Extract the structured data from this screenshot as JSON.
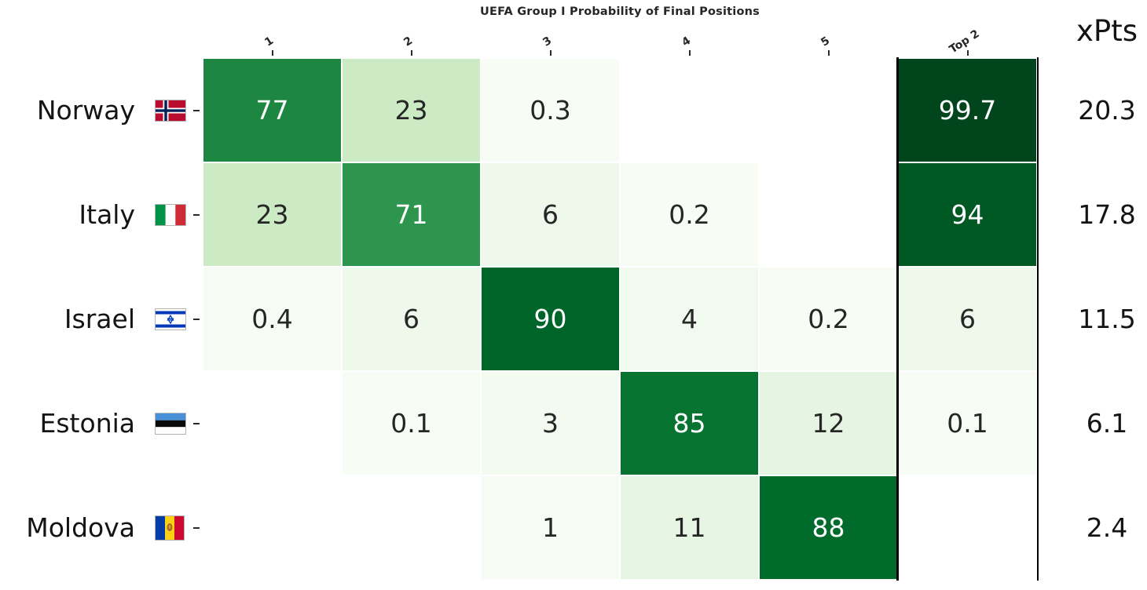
{
  "chart_data": {
    "type": "heatmap",
    "title": "UEFA Group I Probability of Final Positions",
    "xpts_label": "xPts",
    "columns": [
      "1",
      "2",
      "3",
      "4",
      "5",
      "Top 2"
    ],
    "rows": [
      {
        "team": "Norway",
        "flag": "norway",
        "values": [
          77,
          23,
          0.3,
          null,
          null,
          99.7
        ],
        "xpts": "20.3"
      },
      {
        "team": "Italy",
        "flag": "italy",
        "values": [
          23,
          71,
          6,
          0.2,
          null,
          94
        ],
        "xpts": "17.8"
      },
      {
        "team": "Israel",
        "flag": "israel",
        "values": [
          0.4,
          6,
          90,
          4,
          0.2,
          6
        ],
        "xpts": "11.5"
      },
      {
        "team": "Estonia",
        "flag": "estonia",
        "values": [
          null,
          0.1,
          3,
          85,
          12,
          0.1
        ],
        "xpts": "6.1"
      },
      {
        "team": "Moldova",
        "flag": "moldova",
        "values": [
          null,
          null,
          1,
          11,
          88,
          null
        ],
        "xpts": "2.4"
      }
    ],
    "colormap": {
      "name": "Greens",
      "domain": [
        0,
        100
      ],
      "stops": [
        "#f7fcf5",
        "#e5f5e0",
        "#c7e9c0",
        "#a1d99b",
        "#74c476",
        "#41ab5d",
        "#238b45",
        "#006d2c",
        "#00441b"
      ]
    },
    "highlight_column": "Top 2",
    "highlight_border_color": "#000000",
    "cell_text_dark": "#262626",
    "cell_text_light": "#ffffff",
    "axis_text_color": "#262626",
    "label_text_color": "#141414",
    "background": "#ffffff",
    "grid": "off",
    "legend_position": "none"
  }
}
